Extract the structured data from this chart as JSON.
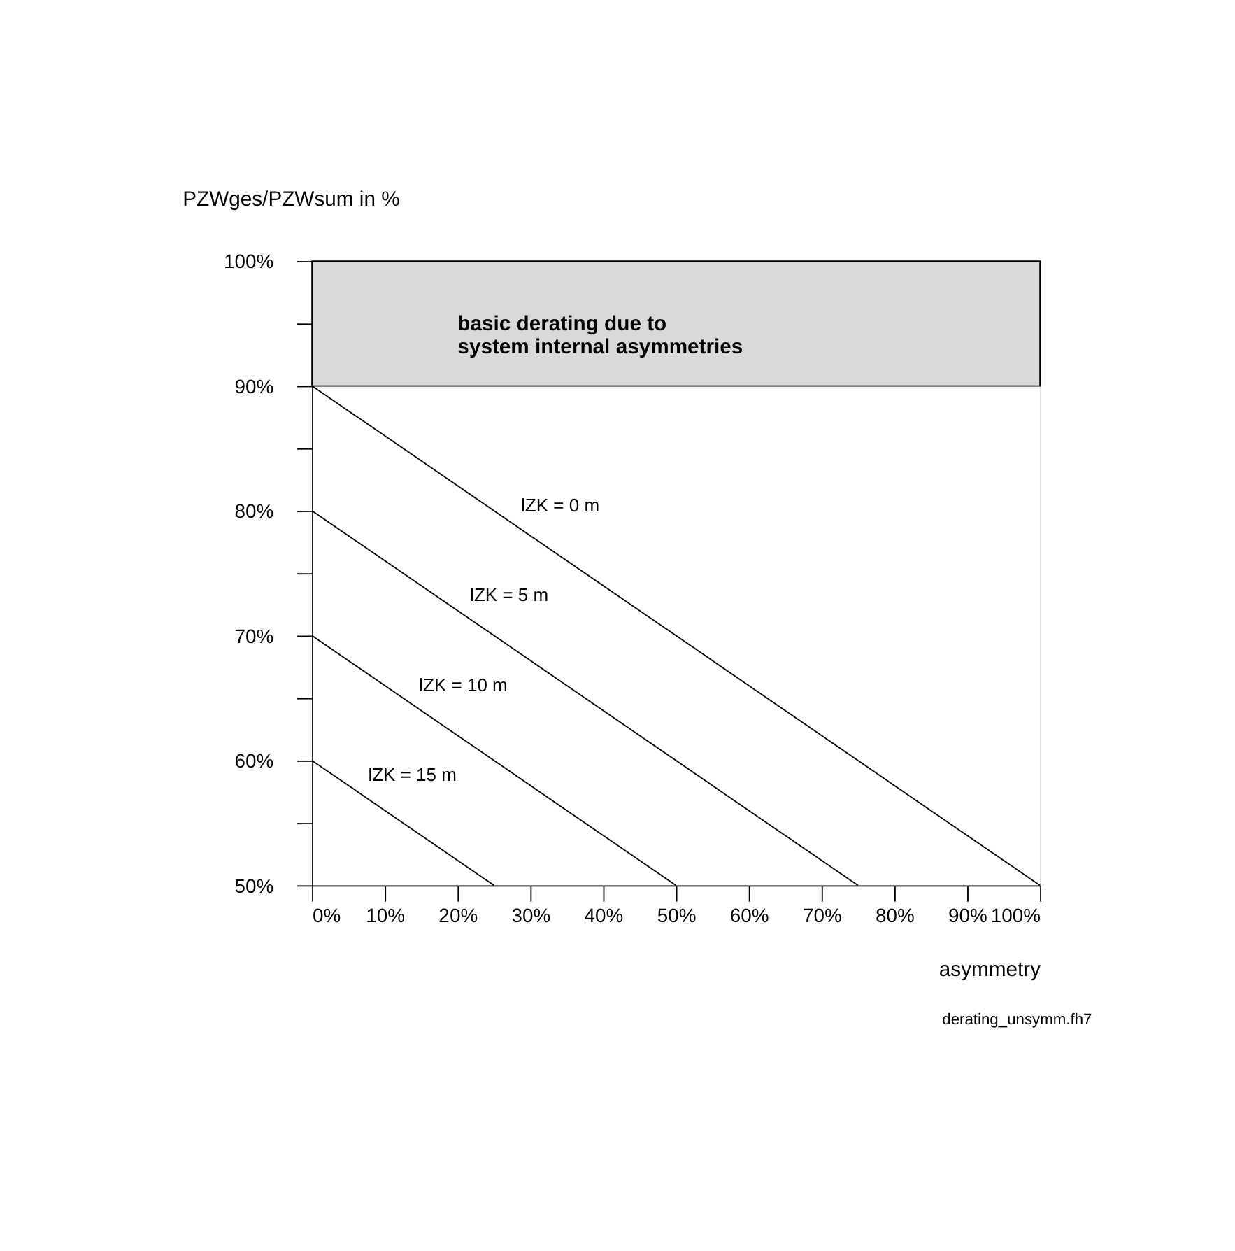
{
  "chart_data": {
    "type": "line",
    "xlabel": "asymmetry",
    "ylabel": "PZWges/PZWsum in %",
    "xlim": [
      0,
      100
    ],
    "ylim": [
      50,
      100
    ],
    "xticks": [
      {
        "value": 0,
        "label": "0%"
      },
      {
        "value": 10,
        "label": "10%"
      },
      {
        "value": 20,
        "label": "20%"
      },
      {
        "value": 30,
        "label": "30%"
      },
      {
        "value": 40,
        "label": "40%"
      },
      {
        "value": 50,
        "label": "50%"
      },
      {
        "value": 60,
        "label": "60%"
      },
      {
        "value": 70,
        "label": "70%"
      },
      {
        "value": 80,
        "label": "80%"
      },
      {
        "value": 90,
        "label": "90%"
      },
      {
        "value": 100,
        "label": "100%"
      }
    ],
    "yticks": [
      {
        "value": 50,
        "label": "50%"
      },
      {
        "value": 55,
        "label": null
      },
      {
        "value": 60,
        "label": "60%"
      },
      {
        "value": 65,
        "label": null
      },
      {
        "value": 70,
        "label": "70%"
      },
      {
        "value": 75,
        "label": null
      },
      {
        "value": 80,
        "label": "80%"
      },
      {
        "value": 85,
        "label": null
      },
      {
        "value": 90,
        "label": "90%"
      },
      {
        "value": 95,
        "label": null
      },
      {
        "value": 100,
        "label": "100%"
      }
    ],
    "series": [
      {
        "name": "lZK = 0 m",
        "color": "#000000",
        "x": [
          0,
          100
        ],
        "values": [
          90,
          50
        ]
      },
      {
        "name": "lZK = 5 m",
        "color": "#000000",
        "x": [
          0,
          75
        ],
        "values": [
          80,
          50
        ]
      },
      {
        "name": "lZK = 10 m",
        "color": "#000000",
        "x": [
          0,
          50
        ],
        "values": [
          70,
          50
        ]
      },
      {
        "name": "lZK = 15 m",
        "color": "#000000",
        "x": [
          0,
          25
        ],
        "values": [
          60,
          50
        ]
      }
    ],
    "bands": [
      {
        "axis": "y",
        "from": 90,
        "to": 100,
        "label": "basic derating due to\nsystem internal asymmetries",
        "color": "#d9d9d9"
      }
    ],
    "annotations": [
      "derating_unsymm.fh7"
    ],
    "grid": false,
    "marker": "none",
    "line_style": "solid"
  }
}
